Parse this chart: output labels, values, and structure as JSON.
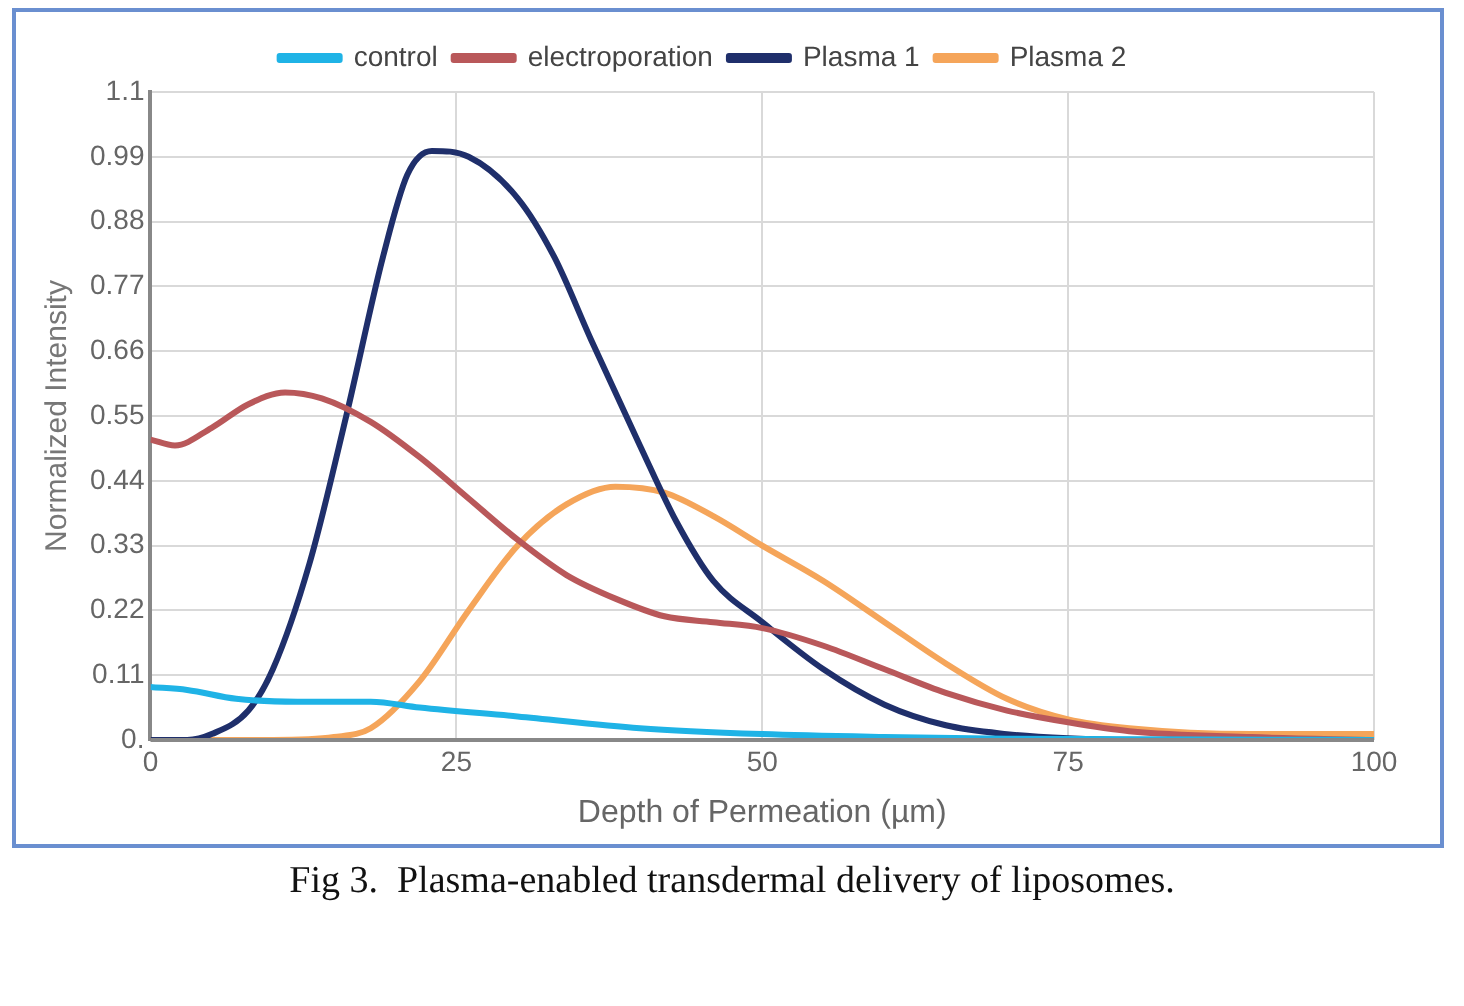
{
  "chart_data": {
    "type": "line",
    "xlabel": "Depth of Permeation (µm)",
    "ylabel": "Normalized Intensity",
    "annotations": [
      "Fig 3.  Plasma-enabled transdermal delivery of liposomes."
    ],
    "xlim": [
      0,
      100
    ],
    "xticks": [
      0,
      25,
      50,
      75,
      100
    ],
    "ylim": [
      0,
      1.1
    ],
    "yticks": [
      {
        "value": 0,
        "label": "0."
      },
      0.11,
      0.22,
      0.33,
      0.44,
      0.55,
      0.66,
      0.77,
      0.88,
      0.99,
      1.1
    ],
    "grid": true,
    "legend": "top",
    "marker": "none",
    "line_style": "solid",
    "series": [
      {
        "name": "control",
        "color": "#1fb3e6",
        "x": [
          0,
          3,
          7,
          12,
          18,
          22,
          30,
          40,
          50,
          60,
          70,
          100
        ],
        "values": [
          0.09,
          0.085,
          0.07,
          0.065,
          0.065,
          0.055,
          0.04,
          0.02,
          0.01,
          0.005,
          0.002,
          0
        ]
      },
      {
        "name": "electroporation",
        "color": "#b9585a",
        "x": [
          0,
          2,
          5,
          8,
          11,
          14,
          18,
          22,
          26,
          30,
          34,
          38,
          42,
          46,
          50,
          55,
          60,
          65,
          70,
          75,
          80,
          90,
          100
        ],
        "values": [
          0.51,
          0.5,
          0.53,
          0.57,
          0.59,
          0.58,
          0.54,
          0.48,
          0.41,
          0.34,
          0.28,
          0.24,
          0.21,
          0.2,
          0.19,
          0.16,
          0.12,
          0.08,
          0.05,
          0.03,
          0.015,
          0.005,
          0
        ]
      },
      {
        "name": "Plasma 1",
        "color": "#1f2f6b",
        "x": [
          0,
          3,
          5,
          8,
          10,
          13,
          16,
          19,
          21,
          23,
          26,
          30,
          33,
          36,
          40,
          43,
          46,
          50,
          55,
          60,
          65,
          70,
          75,
          80,
          100
        ],
        "values": [
          0,
          0,
          0.01,
          0.05,
          0.12,
          0.3,
          0.55,
          0.82,
          0.96,
          1.0,
          0.99,
          0.92,
          0.82,
          0.68,
          0.5,
          0.37,
          0.27,
          0.2,
          0.12,
          0.06,
          0.025,
          0.01,
          0.003,
          0,
          0
        ]
      },
      {
        "name": "Plasma 2",
        "color": "#f5a55a",
        "x": [
          0,
          10,
          15,
          18,
          22,
          26,
          30,
          34,
          38,
          42,
          46,
          50,
          55,
          60,
          65,
          70,
          75,
          80,
          90,
          100
        ],
        "values": [
          0,
          0,
          0.005,
          0.02,
          0.1,
          0.22,
          0.33,
          0.4,
          0.43,
          0.42,
          0.38,
          0.33,
          0.27,
          0.2,
          0.13,
          0.07,
          0.035,
          0.02,
          0.01,
          0.01
        ]
      }
    ]
  }
}
